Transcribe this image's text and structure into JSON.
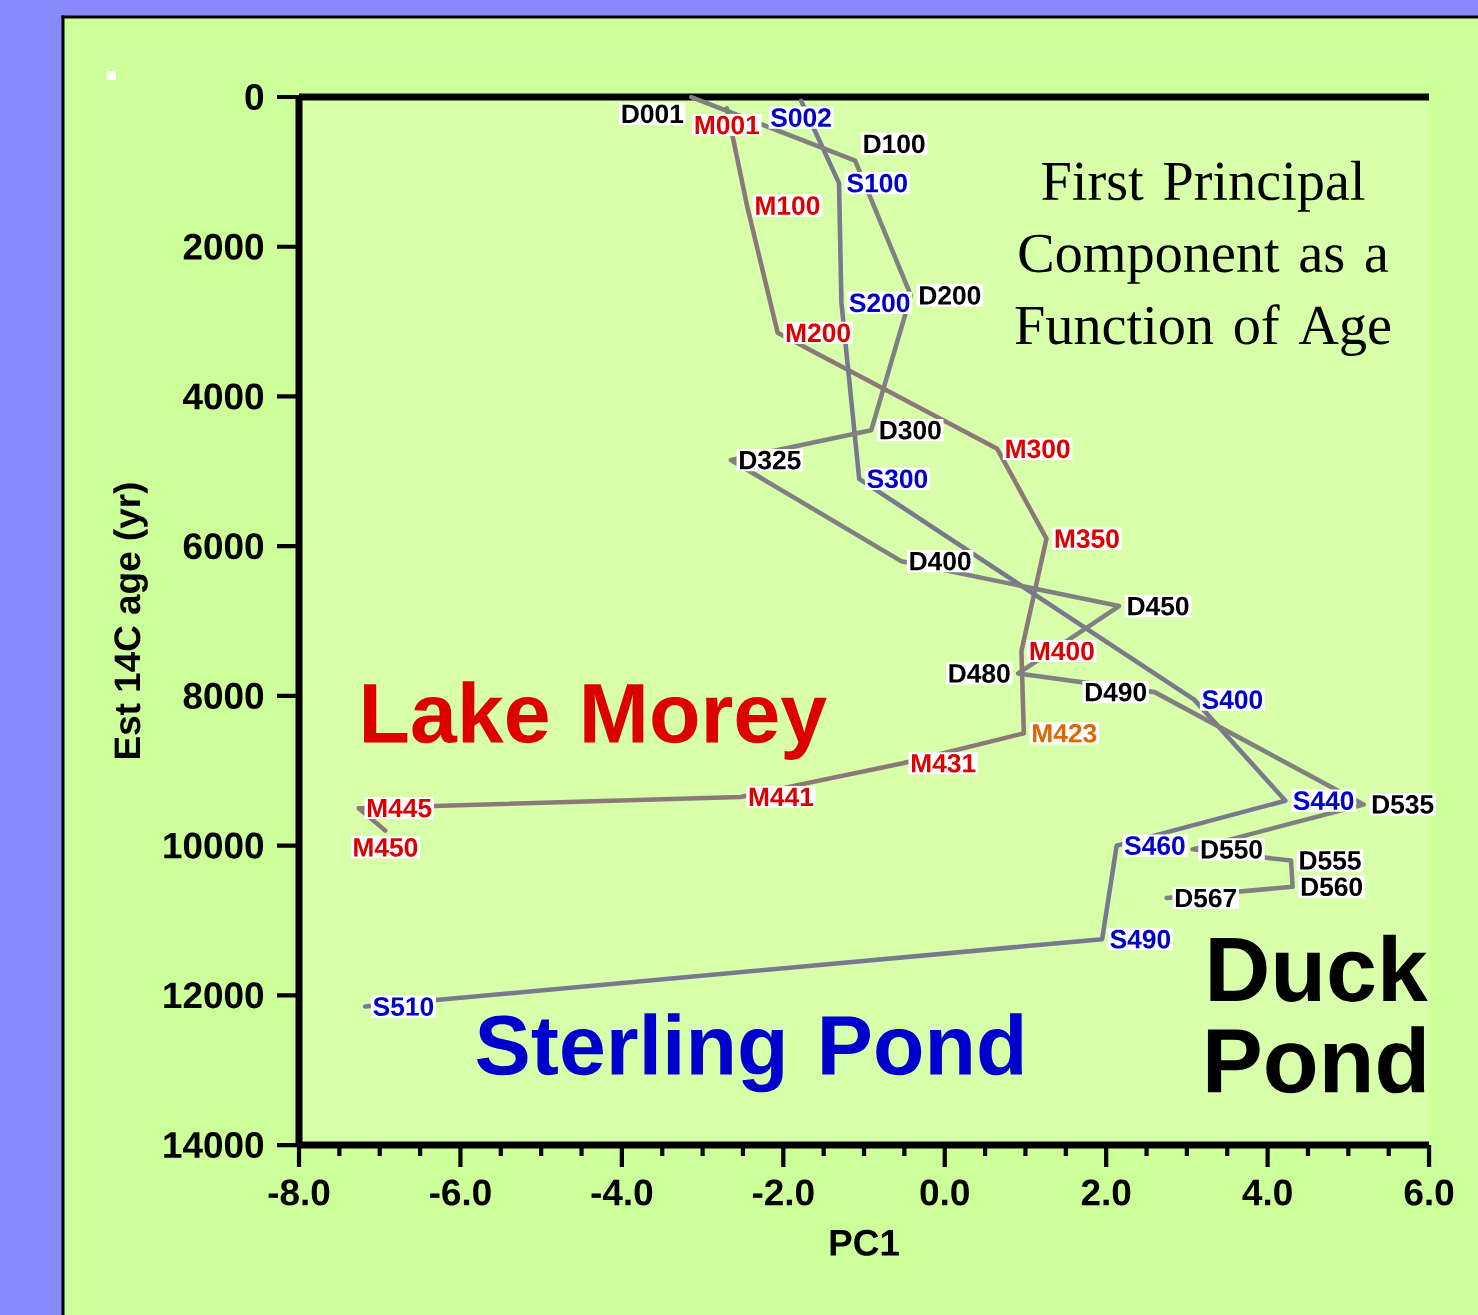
{
  "chart_data": {
    "type": "line",
    "title": "First Principal Component as a Function of Age",
    "xlabel": "PC1",
    "ylabel": "Est 14C age (yr)",
    "xlim": [
      -8,
      6
    ],
    "ylim": [
      14000,
      0
    ],
    "xticks": [
      {
        "value": -8,
        "label": "-8.0"
      },
      {
        "value": -6,
        "label": "-6.0"
      },
      {
        "value": -4,
        "label": "-4.0"
      },
      {
        "value": -2,
        "label": "-2.0"
      },
      {
        "value": 0,
        "label": "0.0"
      },
      {
        "value": 2,
        "label": "2.0"
      },
      {
        "value": 4,
        "label": "4.0"
      },
      {
        "value": 6,
        "label": "6.0"
      }
    ],
    "yticks": [
      0,
      2000,
      4000,
      6000,
      8000,
      10000,
      12000,
      14000
    ],
    "series": [
      {
        "name": "Lake Morey",
        "color": "#8c7878",
        "x": [
          -2.7,
          -2.45,
          -2.07,
          0.65,
          1.26,
          0.95,
          0.98,
          -0.52,
          -2.53,
          -7.26,
          -6.93
        ],
        "values": [
          150,
          1450,
          3150,
          4700,
          5900,
          7400,
          8500,
          8900,
          9350,
          9500,
          9800
        ],
        "value_labels": [
          "M001",
          "M100",
          "M200",
          "M300",
          "M350",
          "M400",
          "M423",
          "M431",
          "M441",
          "M445",
          "M450"
        ],
        "colors": [
          "#dd0000",
          "#dd0000",
          "#dd0000",
          "#dd0000",
          "#dd0000",
          "#dd0000",
          "#dd6600",
          "#dd0000",
          "#dd0000",
          "#dd0000",
          "#dd0000"
        ]
      },
      {
        "name": "Sterling Pond",
        "color": "#78788e",
        "x": [
          -1.78,
          -1.31,
          -1.28,
          -1.06,
          3.09,
          4.22,
          2.13,
          1.95,
          -7.18
        ],
        "values": [
          50,
          1150,
          2750,
          5100,
          8050,
          9400,
          10000,
          11250,
          12150
        ],
        "value_labels": [
          "S002",
          "S100",
          "S200",
          "S300",
          "S400",
          "S440",
          "S460",
          "S490",
          "S510"
        ],
        "colors": [
          "#0000cc",
          "#0000cc",
          "#0000cc",
          "#0000cc",
          "#0000cc",
          "#0000cc",
          "#0000cc",
          "#0000cc",
          "#0000cc"
        ]
      },
      {
        "name": "Duck Pond",
        "color": "#808080",
        "x": [
          -3.14,
          -1.11,
          -0.42,
          -0.91,
          -2.65,
          -0.54,
          2.16,
          0.91,
          2.6,
          5.19,
          3.07,
          4.29,
          4.31,
          2.75
        ],
        "values": [
          0,
          850,
          2650,
          4450,
          4850,
          6200,
          6800,
          7700,
          7950,
          9450,
          10050,
          10200,
          10550,
          10700
        ],
        "value_labels": [
          "D001",
          "D100",
          "D200",
          "D300",
          "D325",
          "D400",
          "D450",
          "D480",
          "D490",
          "D535",
          "D550",
          "D555",
          "D560",
          "D567"
        ],
        "colors": [
          "#000000",
          "#000000",
          "#000000",
          "#000000",
          "#000000",
          "#000000",
          "#000000",
          "#000000",
          "#000000",
          "#000000",
          "#000000",
          "#000000",
          "#000000",
          "#000000"
        ]
      }
    ]
  }
}
